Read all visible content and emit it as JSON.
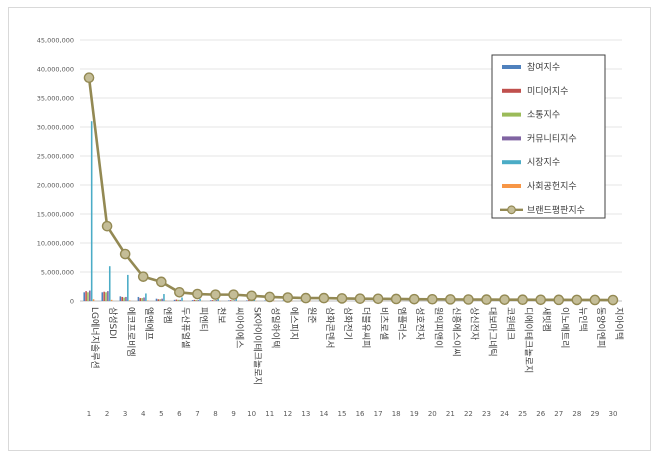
{
  "chart_data": {
    "type": "bar",
    "ylim": [
      0,
      45000000
    ],
    "yticks": [
      "0",
      "5,000,000",
      "10,000,000",
      "15,000,000",
      "20,000,000",
      "25,000,000",
      "30,000,000",
      "35,000,000",
      "40,000,000",
      "45,000,000"
    ],
    "categories": [
      "LG에너지솔루션",
      "삼성SDI",
      "에코프로비엠",
      "엘앤에프",
      "엔켐",
      "두산퓨얼셀",
      "피엔티",
      "천보",
      "씨아이에스",
      "SK아이이테크놀로지",
      "성일하이텍",
      "에스피지",
      "원준",
      "삼화콘덴서",
      "삼화전기",
      "더블유씨피",
      "비츠로셀",
      "엠플러스",
      "성호전자",
      "원익피앤이",
      "신흥에스이씨",
      "상신전자",
      "대보마그네틱",
      "코윈테크",
      "디에이테크놀로지",
      "새빗켐",
      "이노메트리",
      "뉴인텍",
      "동양이엔피",
      "지아이텍"
    ],
    "ranks": [
      "1",
      "2",
      "3",
      "4",
      "5",
      "6",
      "7",
      "8",
      "9",
      "10",
      "11",
      "12",
      "13",
      "14",
      "15",
      "16",
      "17",
      "18",
      "19",
      "20",
      "21",
      "22",
      "23",
      "24",
      "25",
      "26",
      "27",
      "28",
      "29",
      "30"
    ],
    "series": [
      {
        "name": "참여지수",
        "color": "#4f81bd",
        "values": [
          1500000,
          1500000,
          800000,
          700000,
          400000,
          200000,
          150000,
          120000,
          100000,
          100000,
          80000,
          70000,
          60000,
          50000,
          50000,
          40000,
          40000,
          30000,
          30000,
          30000,
          20000,
          20000,
          20000,
          20000,
          20000,
          10000,
          10000,
          10000,
          10000,
          10000
        ]
      },
      {
        "name": "미디어지수",
        "color": "#c0504d",
        "values": [
          1700000,
          1600000,
          700000,
          500000,
          300000,
          250000,
          200000,
          150000,
          150000,
          150000,
          120000,
          100000,
          100000,
          100000,
          90000,
          80000,
          80000,
          70000,
          60000,
          60000,
          60000,
          50000,
          50000,
          50000,
          40000,
          40000,
          30000,
          30000,
          30000,
          30000
        ]
      },
      {
        "name": "소통지수",
        "color": "#9bbb59",
        "values": [
          1500000,
          1500000,
          600000,
          500000,
          300000,
          200000,
          150000,
          120000,
          100000,
          100000,
          90000,
          80000,
          70000,
          60000,
          50000,
          50000,
          40000,
          40000,
          30000,
          30000,
          30000,
          20000,
          20000,
          20000,
          20000,
          20000,
          10000,
          10000,
          10000,
          10000
        ]
      },
      {
        "name": "커뮤니티지수",
        "color": "#8064a2",
        "values": [
          1800000,
          1700000,
          700000,
          600000,
          400000,
          200000,
          150000,
          150000,
          120000,
          100000,
          100000,
          80000,
          70000,
          60000,
          60000,
          50000,
          50000,
          40000,
          40000,
          30000,
          30000,
          30000,
          20000,
          20000,
          20000,
          20000,
          20000,
          10000,
          10000,
          10000
        ]
      },
      {
        "name": "시장지수",
        "color": "#4bacc6",
        "values": [
          31000000,
          6000000,
          4500000,
          1300000,
          1200000,
          600000,
          400000,
          350000,
          500000,
          300000,
          200000,
          150000,
          120000,
          100000,
          100000,
          80000,
          80000,
          70000,
          70000,
          60000,
          50000,
          50000,
          40000,
          40000,
          40000,
          30000,
          30000,
          30000,
          20000,
          20000
        ]
      },
      {
        "name": "사회공헌지수",
        "color": "#f79646",
        "values": [
          300000,
          200000,
          100000,
          80000,
          50000,
          40000,
          30000,
          20000,
          20000,
          20000,
          20000,
          10000,
          10000,
          10000,
          10000,
          10000,
          10000,
          10000,
          10000,
          10000,
          10000,
          10000,
          10000,
          10000,
          10000,
          10000,
          10000,
          10000,
          10000,
          10000
        ]
      }
    ],
    "line": {
      "name": "브랜드평판지수",
      "color": "#938953",
      "marker": "#c4bd97",
      "values": [
        38500000,
        12900000,
        8100000,
        4200000,
        3300000,
        1500000,
        1200000,
        1100000,
        1100000,
        900000,
        700000,
        600000,
        500000,
        500000,
        450000,
        400000,
        380000,
        350000,
        320000,
        300000,
        280000,
        260000,
        240000,
        230000,
        220000,
        210000,
        200000,
        190000,
        180000,
        170000
      ]
    },
    "legend_position": "right"
  }
}
